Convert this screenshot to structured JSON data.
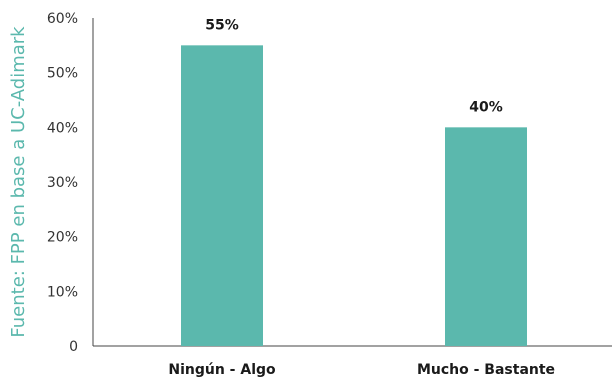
{
  "source_note": "Fuente: FPP en base a UC-Adimark",
  "colors": {
    "bar": "#5bb8ad",
    "source": "#5bb8ad",
    "axis": "#444444"
  },
  "chart_data": {
    "type": "bar",
    "categories": [
      "Ningún - Algo",
      "Mucho - Bastante"
    ],
    "values": [
      55,
      40
    ],
    "data_labels": [
      "55%",
      "40%"
    ],
    "y_ticks": [
      0,
      10,
      20,
      30,
      40,
      50,
      60
    ],
    "y_tick_labels": [
      "0",
      "10%",
      "20%",
      "30%",
      "40%",
      "50%",
      "60%"
    ],
    "ylim": [
      0,
      60
    ],
    "grid": false,
    "legend": "none"
  }
}
